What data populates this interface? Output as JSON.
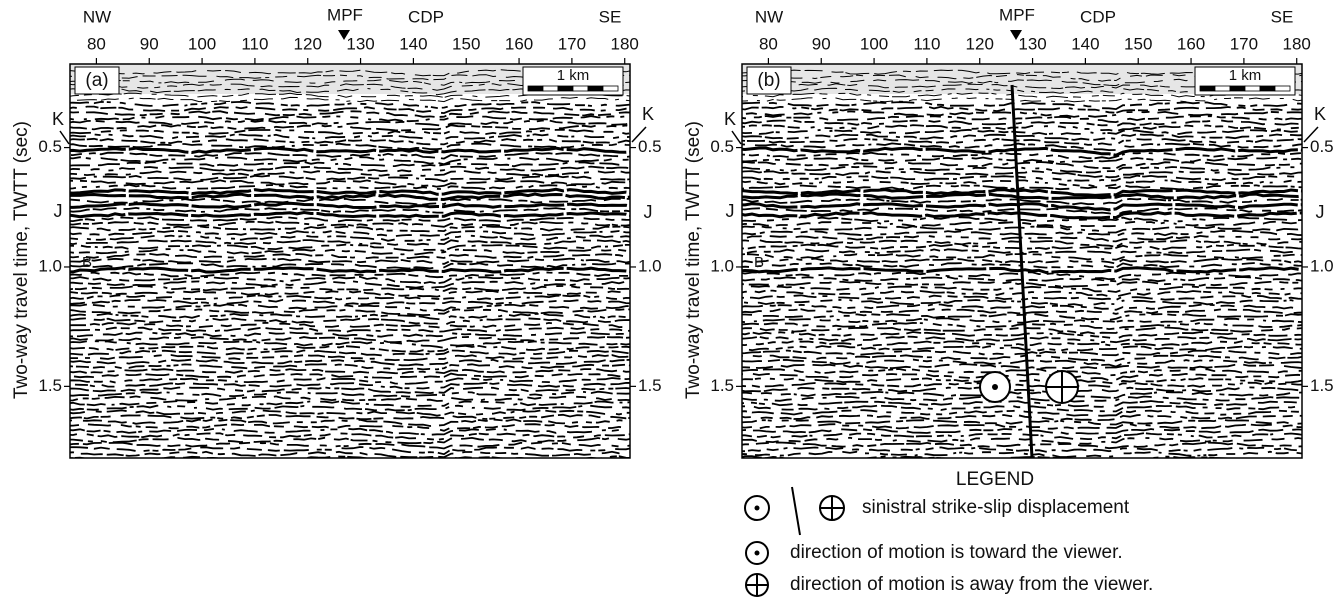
{
  "panels": [
    {
      "label": "(a)",
      "left_direction": "NW",
      "right_direction": "SE",
      "fault_label": "MPF",
      "x_axis_label": "CDP",
      "xlim": [
        75,
        181
      ],
      "xticks": [
        80,
        90,
        100,
        110,
        120,
        130,
        140,
        150,
        160,
        170,
        180
      ],
      "ylim": [
        0.15,
        1.8
      ],
      "yticks": [
        0.5,
        {
          "value": 1,
          "label": "1.0"
        },
        1.5
      ],
      "y_axis_label": "Two-way travel time, TWTT (sec)",
      "scale_bar": "1 km",
      "horizons_left": [
        "K",
        "J",
        "B"
      ],
      "horizons_right": [
        "K",
        "J"
      ]
    },
    {
      "label": "(b)",
      "left_direction": "NW",
      "right_direction": "SE",
      "fault_label": "MPF",
      "x_axis_label": "CDP",
      "xlim": [
        75,
        181
      ],
      "xticks": [
        80,
        90,
        100,
        110,
        120,
        130,
        140,
        150,
        160,
        170,
        180
      ],
      "ylim": [
        0.15,
        1.8
      ],
      "yticks": [
        0.5,
        {
          "value": 1,
          "label": "1.0"
        },
        1.5
      ],
      "y_axis_label": "Two-way travel time, TWTT (sec)",
      "scale_bar": "1 km",
      "horizons_left": [
        "K",
        "J",
        "B"
      ],
      "horizons_right": [
        "K",
        "J"
      ]
    }
  ],
  "legend": {
    "title": "LEGEND",
    "items": [
      "sinistral strike-slip displacement",
      "direction of motion is toward the viewer.",
      "direction of motion is away from the viewer."
    ]
  }
}
